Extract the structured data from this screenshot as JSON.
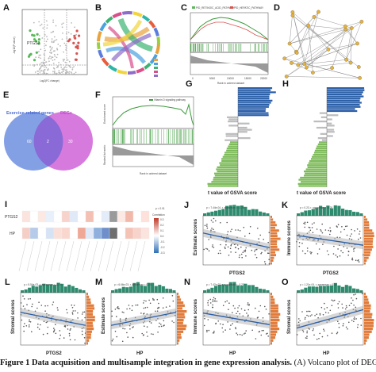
{
  "panels": {
    "A": {
      "label": "A",
      "ylabel": "-log10(P value)",
      "xlabel": "Log2(FC change)",
      "gene_tag": "PTGS2"
    },
    "B": {
      "label": "B"
    },
    "C": {
      "label": "C",
      "legend": [
        "PID_RETINOIC_ACID_PATHWAY",
        "PID_HEPATIC_PATHWAY"
      ],
      "xlabel": "Rank in ordered dataset",
      "ylabel_top": "Enrichment score",
      "ylabel_bottom": "Ranked list metric",
      "ticks": [
        "0",
        "5000",
        "10000",
        "15000",
        "20000"
      ]
    },
    "D": {
      "label": "D"
    },
    "E": {
      "label": "E",
      "set_left": "Exercise-related genes",
      "set_right": "DEGs",
      "n_left": "60",
      "n_both": "2",
      "n_right": "30"
    },
    "F": {
      "label": "F",
      "legend": "Vitamin D signaling pathway",
      "xlabel": "Rank in ordered dataset",
      "ylabel_top": "Enrichment score",
      "ylabel_bottom": "Ranked list metric"
    },
    "G": {
      "label": "G",
      "xlabel": "t value of GSVA score"
    },
    "H": {
      "label": "H",
      "xlabel": "t value of GSVA score"
    },
    "I": {
      "label": "I",
      "rows": [
        "PTGS2",
        "HP"
      ],
      "legend_p": "p < 0.01",
      "legend_title": "Correlation",
      "scale": [
        "0.3",
        "0.2",
        "0.1",
        "0.0",
        "-0.1",
        "-0.2",
        "-0.3"
      ]
    },
    "J": {
      "label": "J",
      "stat": "p = 7.44e-04, r_spearman = -0.28",
      "xlabel": "PTGS2",
      "ylabel": "Estimate scores"
    },
    "K": {
      "label": "K",
      "stat": "p = 0.23, r_spearman = -0.20",
      "xlabel": "PTGS2",
      "ylabel": "Immune scores"
    },
    "L": {
      "label": "L",
      "stat": "p = 5.54e-03, r_spearman = -0.24",
      "xlabel": "PTGS2",
      "ylabel": "Stromal scores"
    },
    "M": {
      "label": "M",
      "stat": "p = 6.66e-03, r_spearman = 0.23",
      "xlabel": "HP",
      "ylabel": "Estimate scores"
    },
    "N": {
      "label": "N",
      "stat": "p = 7.47e-03, r_spearman = -0.22",
      "xlabel": "HP",
      "ylabel": "Immune scores"
    },
    "O": {
      "label": "O",
      "stat": "p = 1.21e-04, r_spearman = 0.32",
      "xlabel": "HP",
      "ylabel": "Stromal scores"
    }
  },
  "caption": {
    "bold": "Figure 1 Data acquisition and multisample integration in gene expression analysis.",
    "rest": " (A) Volcano plot of DEGs, showing significant"
  },
  "colors": {
    "up": "#d9534f",
    "down": "#5cb85c",
    "blue": "#2b5fa8",
    "green": "#7dbb5a",
    "teal": "#2e8b6e",
    "orange": "#e07b3a"
  }
}
